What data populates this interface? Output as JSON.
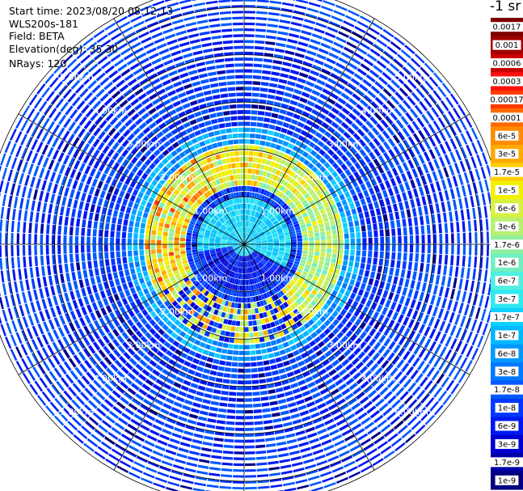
{
  "header": {
    "start_time": "Start time: 2023/08/20 08:12:13",
    "instrument": "WLS200s-181",
    "field": "Field: BETA",
    "elevation": "Elevation(deg): 35.30",
    "nrays": "NRays: 120"
  },
  "colorbar": {
    "title": "-1 sr",
    "labels": [
      "0.0017",
      "0.001",
      "0.0006",
      "0.0003",
      "0.00017",
      "0.0001",
      "6e-5",
      "3e-5",
      "1.7e-5",
      "1e-5",
      "6e-6",
      "3e-6",
      "1.7e-6",
      "1e-6",
      "6e-7",
      "3e-7",
      "1.7e-7",
      "1e-7",
      "6e-8",
      "3e-8",
      "1.7e-8",
      "1e-8",
      "6e-9",
      "3e-9",
      "1.7e-9",
      "1e-9"
    ],
    "colors": [
      "#7d0000",
      "#a00000",
      "#c80000",
      "#ff1010",
      "#ff3a00",
      "#ff6a00",
      "#ff8c00",
      "#ffaa00",
      "#ffd000",
      "#f2f000",
      "#d8f040",
      "#b8f070",
      "#90f0a0",
      "#70f0c0",
      "#50f0e0",
      "#30e8f0",
      "#10d0ff",
      "#00b8ff",
      "#0098ff",
      "#0078ff",
      "#0058ff",
      "#0038ff",
      "#0018f0",
      "#0000d0",
      "#0000a8",
      "#000080"
    ]
  },
  "chart_data": {
    "type": "heatmap",
    "projection": "polar-ppi",
    "field": "BETA",
    "units": "-1 sr",
    "n_rays": 120,
    "elevation_deg": 35.3,
    "range_rings_km": [
      1,
      2,
      3,
      4,
      5
    ],
    "ring_labels": [
      "1.00km",
      "2.00km",
      "3.00km",
      "4.00km",
      "5.00km"
    ],
    "max_range_km": 5.5,
    "azimuth_gridlines_deg": [
      0,
      30,
      60,
      90,
      120,
      150,
      180,
      210,
      240,
      270,
      300,
      330
    ],
    "color_scale": "log",
    "color_range": [
      1e-09,
      0.0017
    ],
    "background_level_range": [
      6e-09,
      3e-08
    ],
    "aerosol_ring": {
      "range_km": [
        1.2,
        2.1
      ],
      "level_range": [
        1e-06,
        0.0003
      ],
      "peak_azimuth_deg": 270
    },
    "near_field_level_range": [
      1e-07,
      6e-07
    ]
  }
}
